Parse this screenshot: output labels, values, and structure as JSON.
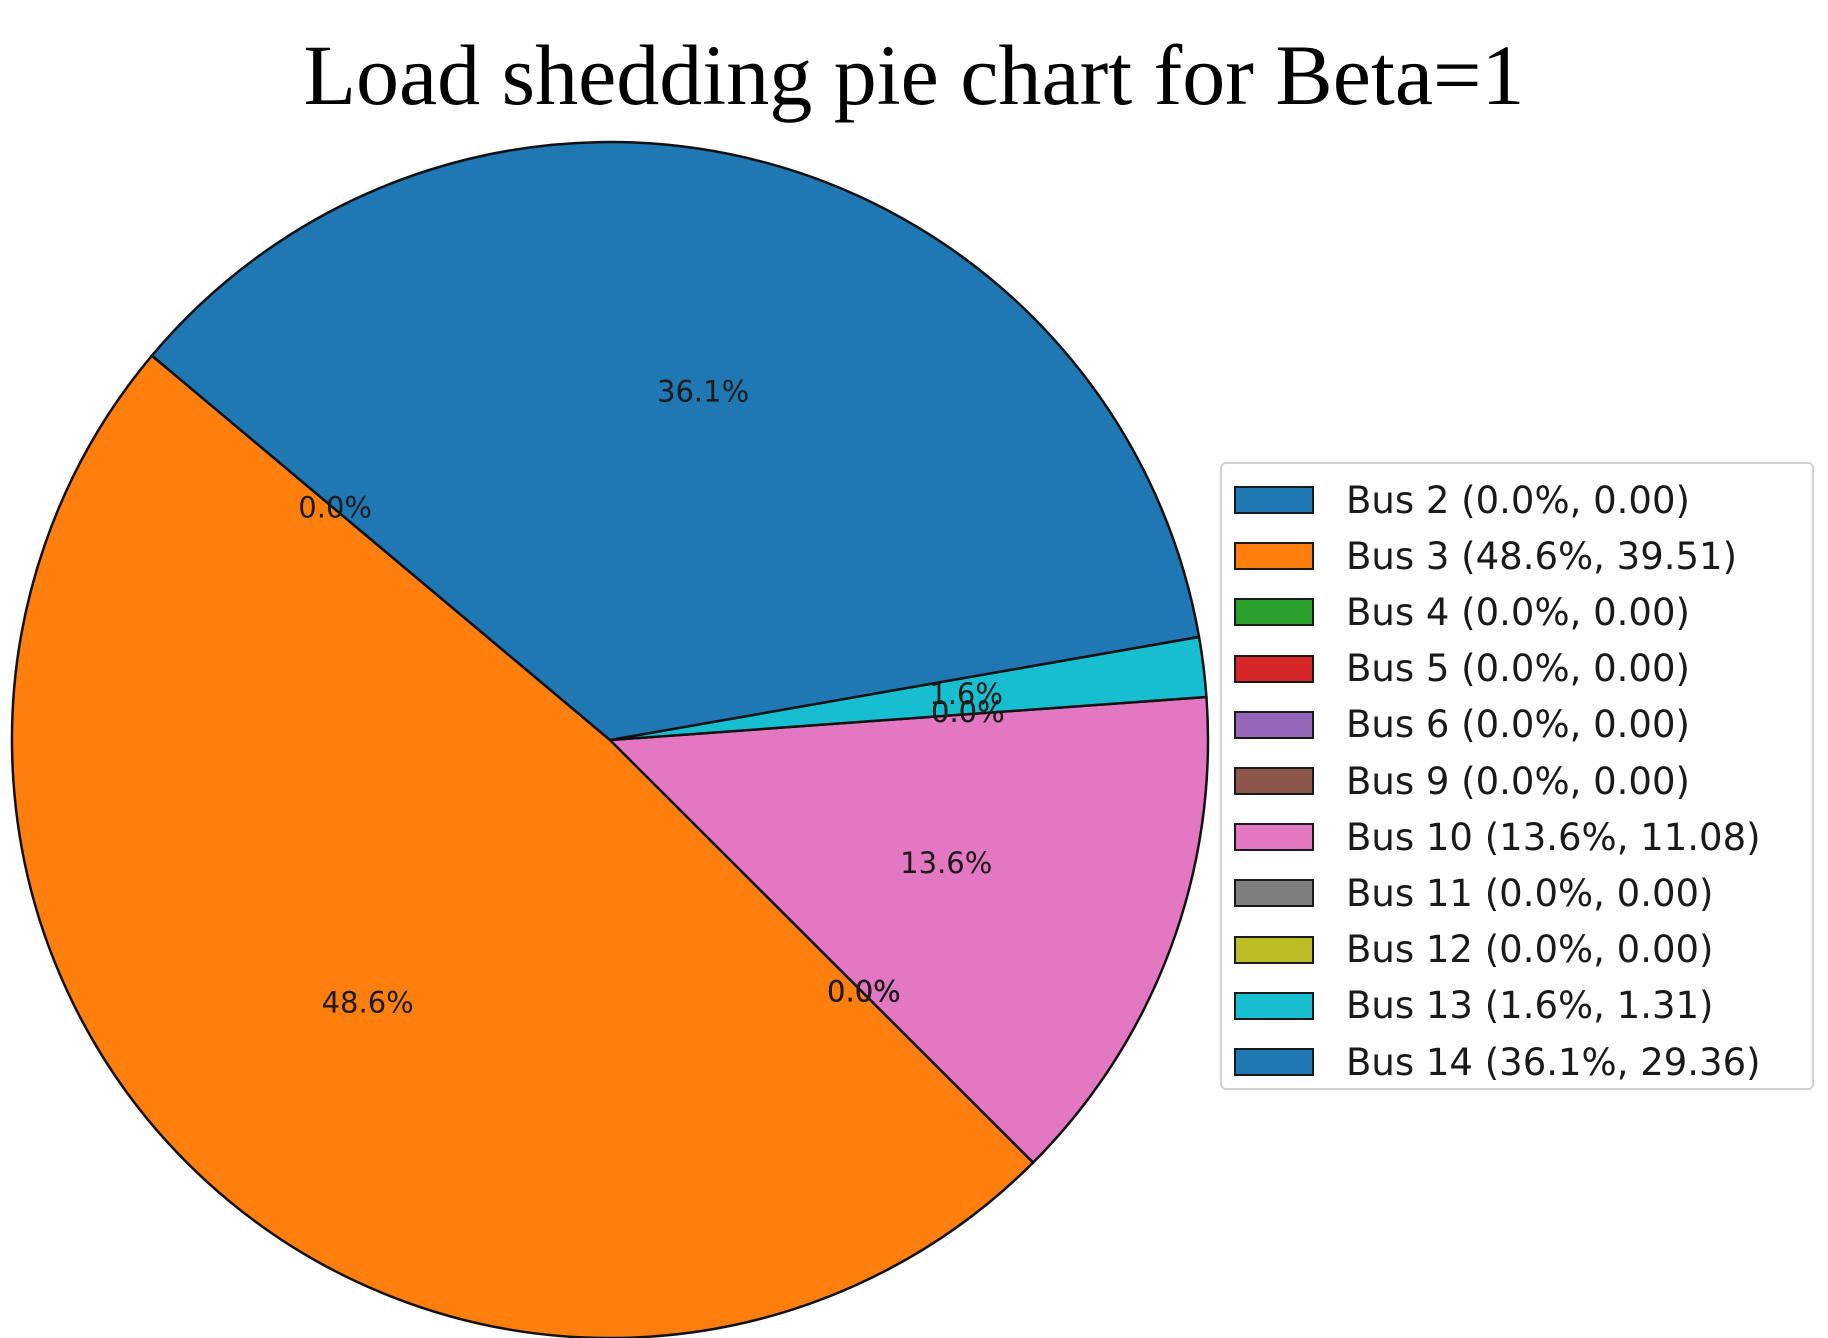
{
  "chart_data": {
    "type": "pie",
    "title": "Load shedding pie chart for Beta=1",
    "slices": [
      {
        "label": "Bus 2",
        "percent": 0.0,
        "value": 0.0,
        "color": "#1f77b4",
        "pct_label": "0.0%",
        "legend": "Bus 2 (0.0%, 0.00)"
      },
      {
        "label": "Bus 3",
        "percent": 48.6,
        "value": 39.51,
        "color": "#ff7f0e",
        "pct_label": "48.6%",
        "legend": "Bus 3 (48.6%, 39.51)"
      },
      {
        "label": "Bus 4",
        "percent": 0.0,
        "value": 0.0,
        "color": "#2ca02c",
        "pct_label": "0.0%",
        "legend": "Bus 4 (0.0%, 0.00)"
      },
      {
        "label": "Bus 5",
        "percent": 0.0,
        "value": 0.0,
        "color": "#d62728",
        "pct_label": "0.0%",
        "legend": "Bus 5 (0.0%, 0.00)"
      },
      {
        "label": "Bus 6",
        "percent": 0.0,
        "value": 0.0,
        "color": "#9467bd",
        "pct_label": "0.0%",
        "legend": "Bus 6 (0.0%, 0.00)"
      },
      {
        "label": "Bus 9",
        "percent": 0.0,
        "value": 0.0,
        "color": "#8c564b",
        "pct_label": "0.0%",
        "legend": "Bus 9 (0.0%, 0.00)"
      },
      {
        "label": "Bus 10",
        "percent": 13.6,
        "value": 11.08,
        "color": "#e377c2",
        "pct_label": "13.6%",
        "legend": "Bus 10 (13.6%, 11.08)"
      },
      {
        "label": "Bus 11",
        "percent": 0.0,
        "value": 0.0,
        "color": "#7f7f7f",
        "pct_label": "0.0%",
        "legend": "Bus 11 (0.0%, 0.00)"
      },
      {
        "label": "Bus 12",
        "percent": 0.0,
        "value": 0.0,
        "color": "#bcbd22",
        "pct_label": "0.0%",
        "legend": "Bus 12 (0.0%, 0.00)"
      },
      {
        "label": "Bus 13",
        "percent": 1.6,
        "value": 1.31,
        "color": "#17becf",
        "pct_label": "1.6%",
        "legend": "Bus 13 (1.6%, 1.31)"
      },
      {
        "label": "Bus 14",
        "percent": 36.1,
        "value": 29.36,
        "color": "#1f77b4",
        "pct_label": "36.1%",
        "legend": "Bus 14 (36.1%, 29.36)"
      }
    ],
    "start_angle_deg": 140,
    "direction": "counterclockwise",
    "legend_position": "center-right"
  }
}
